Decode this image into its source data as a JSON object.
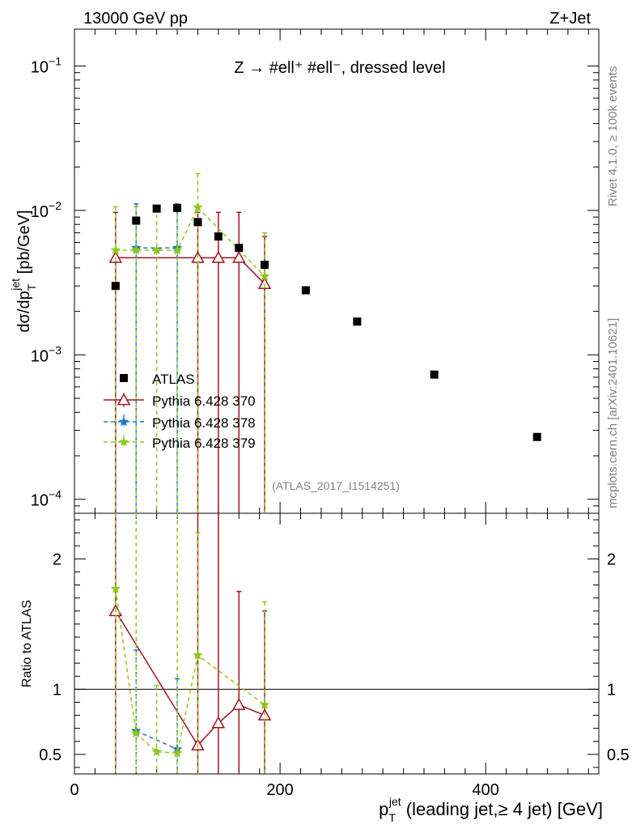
{
  "header": {
    "left": "13000 GeV pp",
    "right": "Z+Jet",
    "process": "Z → #ell⁺ #ell⁻, dressed level",
    "analysis": "(ATLAS_2017_I1514251)",
    "side_top": "Rivet 4.1.0, ≥ 100k events",
    "side_bottom": "mcplots.cern.ch [arXiv:2401.10621]"
  },
  "chart_data": {
    "type": "scatter",
    "title": "Z → #ell⁺ #ell⁻, dressed level",
    "xlabel": "p_T^jet (leading jet, ≥ 4 jet) [GeV]",
    "xlabel_parts": {
      "p": "p",
      "sub": "T",
      "sup": "jet",
      "rest": " (leading jet,≥ 4 jet) [GeV]"
    },
    "ylabel_parts": {
      "a": "dσ/dp",
      "sub": "T",
      "sup": "jet",
      "b": " [pb/GeV]"
    },
    "ratio_ylabel": "Ratio to ATLAS",
    "xlim": [
      0,
      510
    ],
    "ylim": [
      8e-05,
      0.18
    ],
    "ratio_ylim": [
      0.35,
      2.35
    ],
    "x_ticks": [
      0,
      200,
      400
    ],
    "x_tick_labels": [
      "0",
      "200",
      "400"
    ],
    "y_ticks": [
      0.0001,
      0.001,
      0.01,
      0.1
    ],
    "y_tick_labels": [
      {
        "base": "10",
        "exp": "−4"
      },
      {
        "base": "10",
        "exp": "−3"
      },
      {
        "base": "10",
        "exp": "−2"
      },
      {
        "base": "10",
        "exp": "−1"
      }
    ],
    "ratio_ticks": [
      0.5,
      1,
      2
    ],
    "ratio_tick_labels": [
      "0.5",
      "1",
      "2"
    ],
    "legend": [
      "ATLAS",
      "Pythia 6.428 370",
      "Pythia 6.428 378",
      "Pythia 6.428 379"
    ],
    "data": {
      "name": "ATLAS",
      "x": [
        40,
        60,
        80,
        100,
        120,
        140,
        160,
        185,
        225,
        275,
        350,
        450
      ],
      "y": [
        0.003,
        0.0085,
        0.0103,
        0.0104,
        0.0083,
        0.0066,
        0.0055,
        0.0042,
        0.0028,
        0.0017,
        0.00073,
        0.00027
      ]
    },
    "series": [
      {
        "name": "Pythia 6.428 370",
        "color": "#a0141e",
        "dash": "none",
        "marker": "triangle",
        "x": [
          40,
          120,
          140,
          160,
          185
        ],
        "y": [
          0.0047,
          0.0047,
          0.0047,
          0.0047,
          0.0031
        ],
        "err_hi": [
          0.0097,
          0.0097,
          0.0097,
          0.0097,
          0.0066
        ],
        "err_lo": [
          8e-05,
          8e-05,
          8e-05,
          8e-05,
          8e-05
        ],
        "ratio": [
          1.6,
          0.57,
          0.74,
          0.88,
          0.8
        ],
        "ratio_hi": [
          2.35,
          2.35,
          2.35,
          1.75,
          1.6
        ],
        "ratio_lo": [
          0.35,
          0.35,
          0.35,
          0.35,
          0.35
        ]
      },
      {
        "name": "Pythia 6.428 378",
        "color": "#1e78c8",
        "dash": "5,4",
        "marker": "star",
        "x": [
          60,
          100
        ],
        "y": [
          0.0055,
          0.0055
        ],
        "err_hi": [
          0.0111,
          0.0111
        ],
        "err_lo": [
          8e-05,
          8e-05
        ],
        "ratio": [
          0.68,
          0.54
        ],
        "ratio_hi": [
          1.3,
          1.08
        ],
        "ratio_lo": [
          0.35,
          0.35
        ]
      },
      {
        "name": "Pythia 6.428 379",
        "color": "#8cc81e",
        "dash": "5,4",
        "marker": "star",
        "x": [
          40,
          60,
          80,
          100,
          120,
          185
        ],
        "y": [
          0.0053,
          0.0053,
          0.0053,
          0.0053,
          0.0105,
          0.0035
        ],
        "err_hi": [
          0.0106,
          0.0106,
          0.0106,
          0.0106,
          0.018,
          0.007
        ],
        "err_lo": [
          8e-05,
          8e-05,
          8e-05,
          8e-05,
          8e-05,
          8e-05
        ],
        "ratio": [
          1.77,
          0.66,
          0.52,
          0.51,
          1.26,
          0.88
        ],
        "ratio_hi": [
          2.35,
          2.35,
          1.03,
          2.35,
          2.2,
          1.67
        ],
        "ratio_lo": [
          0.35,
          0.35,
          0.35,
          0.35,
          0.35,
          0.35
        ]
      }
    ]
  }
}
